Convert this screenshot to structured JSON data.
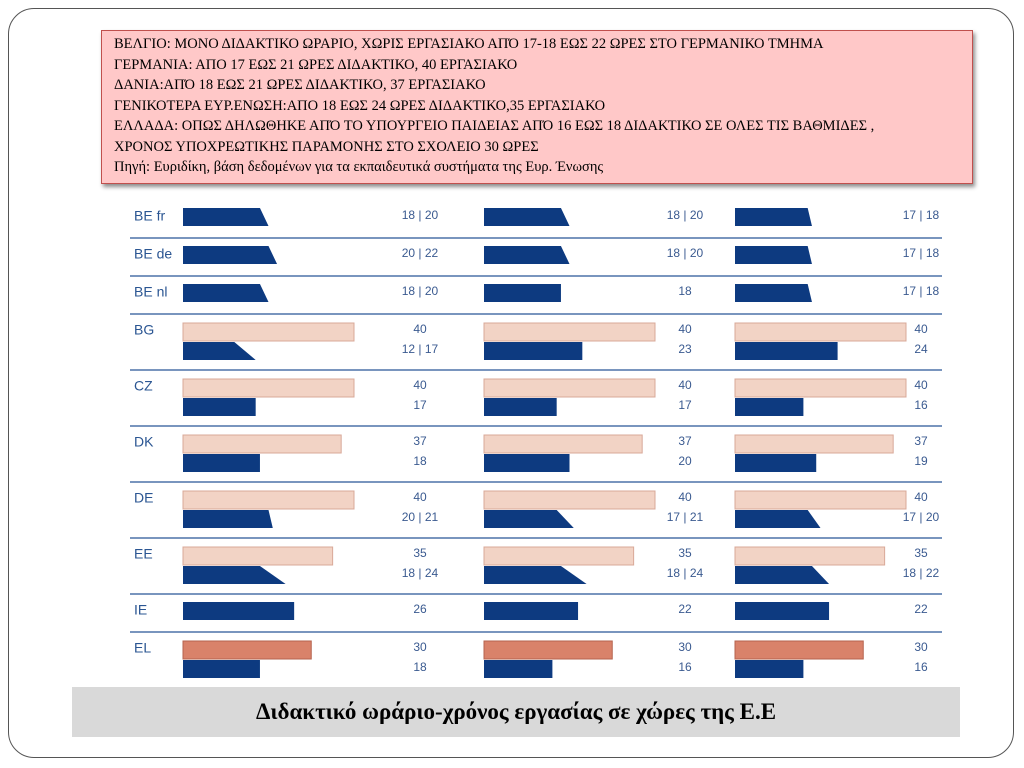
{
  "note_box": {
    "lines": [
      "ΒΕΛΓΙΟ: ΜΟΝΟ ΔΙΔΑΚΤΙΚΟ ΩΡΑΡΙΟ, ΧΩΡΙΣ ΕΡΓΑΣΙΑΚΟ ΑΠΌ 17-18  ΕΩΣ 22 ΩΡΕΣ ΣΤΟ ΓΕΡΜΑΝΙΚΟ ΤΜΗΜΑ",
      "ΓΕΡΜΑΝΙΑ: ΑΠΟ 17 ΕΩΣ 21 ΩΡΕΣ ΔΙΔΑΚΤΙΚΟ, 40 ΕΡΓΑΣΙΑΚΟ",
      "ΔΑΝΙΑ:ΑΠΌ 18 ΕΩΣ 21 ΩΡΕΣ ΔΙΔΑΚΤΙΚΟ, 37 ΕΡΓΑΣΙΑΚΟ",
      "ΓΕΝΙΚΟΤΕΡΑ ΕΥΡ.ΕΝΩΣΗ:ΑΠΟ 18 ΕΩΣ 24 ΩΡΕΣ ΔΙΔΑΚΤΙΚΟ,35 ΕΡΓΑΣΙΑΚΟ",
      "ΕΛΛΑΔΑ: ΟΠΩΣ ΔΗΛΩΘΗΚΕ ΑΠΌ ΤΟ ΥΠΟΥΡΓΕΙΟ ΠΑΙΔΕΙΑΣ ΑΠΌ 16 ΕΩΣ 18 ΔΙΔΑΚΤΙΚΟ ΣΕ ΟΛΕΣ ΤΙΣ ΒΑΘΜΙΔΕΣ ,",
      "ΧΡΟΝΟΣ ΥΠΟΧΡΕΩΤΙΚΗΣ ΠΑΡΑΜΟΝΗΣ ΣΤΟ ΣΧΟΛΕΙΟ 30 ΩΡΕΣ",
      "Πηγή: Ευριδίκη, βάση δεδομένων για τα εκπαιδευτικά συστήματα της Ευρ. Ένωσης"
    ]
  },
  "caption": "Διδακτικό ωράριο-χρόνος εργασίας σε χώρες της Ε.Ε",
  "chart_data": {
    "type": "teaching-hours",
    "xlim": [
      0,
      40
    ],
    "colors": {
      "teaching": "#0d3a80",
      "total": "#f2d3c5",
      "highlight": "#d9826a",
      "country": "#2a5592",
      "rule": "#4d72a8"
    },
    "rows": [
      {
        "country": "BE fr",
        "panels": [
          {
            "teaching": {
              "low": 18,
              "high": 20,
              "label": "18 | 20"
            }
          },
          {
            "teaching": {
              "low": 18,
              "high": 20,
              "label": "18 | 20"
            }
          },
          {
            "teaching": {
              "low": 17,
              "high": 18,
              "label": "17 | 18"
            }
          }
        ]
      },
      {
        "country": "BE de",
        "panels": [
          {
            "teaching": {
              "low": 20,
              "high": 22,
              "label": "20 | 22"
            }
          },
          {
            "teaching": {
              "low": 18,
              "high": 20,
              "label": "18 | 20"
            }
          },
          {
            "teaching": {
              "low": 17,
              "high": 18,
              "label": "17 | 18"
            }
          }
        ]
      },
      {
        "country": "BE nl",
        "panels": [
          {
            "teaching": {
              "low": 18,
              "high": 20,
              "label": "18 | 20"
            }
          },
          {
            "teaching": 18
          },
          {
            "teaching": {
              "low": 17,
              "high": 18,
              "label": "17 | 18"
            }
          }
        ]
      },
      {
        "country": "BG",
        "panels": [
          {
            "total": 40,
            "teaching": {
              "low": 12,
              "high": 17,
              "label": "12 | 17"
            }
          },
          {
            "total": 40,
            "teaching": 23
          },
          {
            "total": 40,
            "teaching": 24
          }
        ]
      },
      {
        "country": "CZ",
        "panels": [
          {
            "total": 40,
            "teaching": 17
          },
          {
            "total": 40,
            "teaching": 17
          },
          {
            "total": 40,
            "teaching": 16
          }
        ]
      },
      {
        "country": "DK",
        "panels": [
          {
            "total": 37,
            "teaching": 18
          },
          {
            "total": 37,
            "teaching": 20
          },
          {
            "total": 37,
            "teaching": 19
          }
        ]
      },
      {
        "country": "DE",
        "panels": [
          {
            "total": 40,
            "teaching": {
              "low": 20,
              "high": 21,
              "label": "20 | 21"
            }
          },
          {
            "total": 40,
            "teaching": {
              "low": 17,
              "high": 21,
              "label": "17 | 21"
            }
          },
          {
            "total": 40,
            "teaching": {
              "low": 17,
              "high": 20,
              "label": "17 | 20"
            }
          }
        ]
      },
      {
        "country": "EE",
        "panels": [
          {
            "total": 35,
            "teaching": {
              "low": 18,
              "high": 24,
              "label": "18 | 24"
            }
          },
          {
            "total": 35,
            "teaching": {
              "low": 18,
              "high": 24,
              "label": "18 | 24"
            }
          },
          {
            "total": 35,
            "teaching": {
              "low": 18,
              "high": 22,
              "label": "18 | 22"
            }
          }
        ]
      },
      {
        "country": "IE",
        "panels": [
          {
            "teaching": 26
          },
          {
            "teaching": 22
          },
          {
            "teaching": 22
          }
        ]
      },
      {
        "country": "EL",
        "highlight": true,
        "panels": [
          {
            "total": 30,
            "teaching": 18
          },
          {
            "total": 30,
            "teaching": 16
          },
          {
            "total": 30,
            "teaching": 16
          }
        ]
      }
    ]
  }
}
